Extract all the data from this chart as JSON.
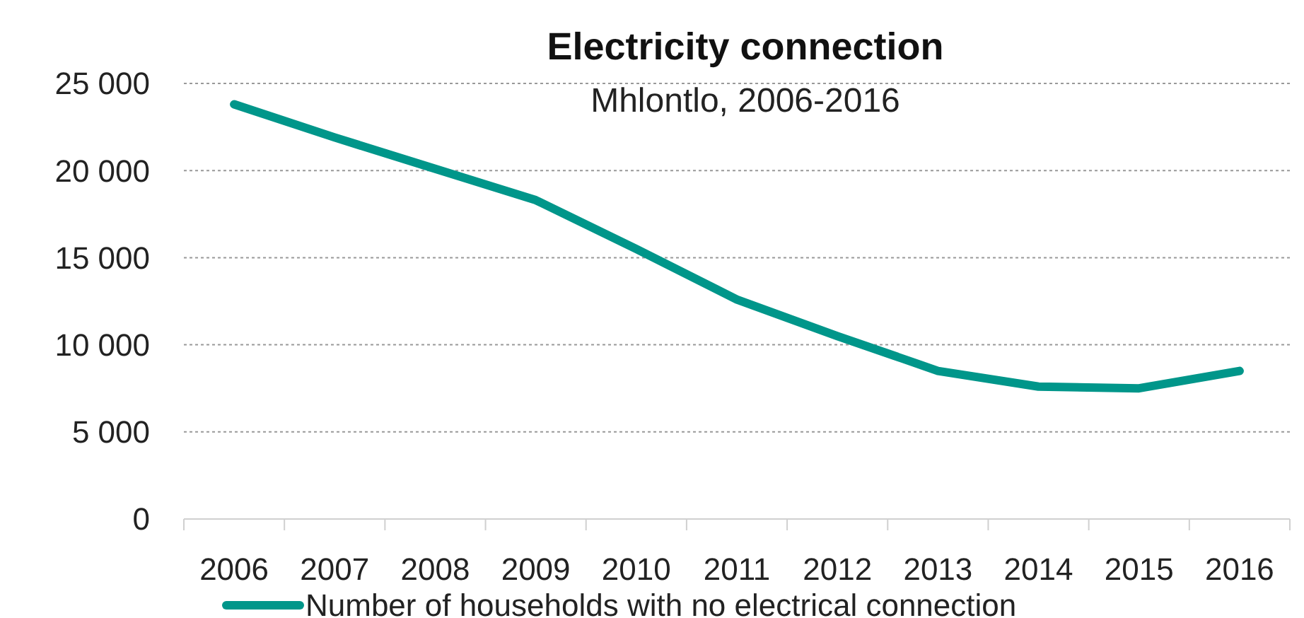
{
  "chart_data": {
    "type": "line",
    "title": "Electricity connection",
    "subtitle": "Mhlontlo, 2006-2016",
    "categories": [
      "2006",
      "2007",
      "2008",
      "2009",
      "2010",
      "2011",
      "2012",
      "2013",
      "2014",
      "2015",
      "2016"
    ],
    "series": [
      {
        "name": "Number of households with no electrical connection",
        "color": "#00968a",
        "values": [
          23800,
          21900,
          20100,
          18300,
          15500,
          12600,
          10500,
          8500,
          7600,
          7500,
          8500
        ]
      }
    ],
    "ylim": [
      0,
      25000
    ],
    "yticks": [
      {
        "value": 0,
        "label": "0"
      },
      {
        "value": 5000,
        "label": "5 000"
      },
      {
        "value": 10000,
        "label": "10 000"
      },
      {
        "value": 15000,
        "label": "15 000"
      },
      {
        "value": 20000,
        "label": "20 000"
      },
      {
        "value": 25000,
        "label": "25 000"
      }
    ],
    "grid": "y",
    "legend": "bottom",
    "marker": "none",
    "line_style": "solid"
  }
}
